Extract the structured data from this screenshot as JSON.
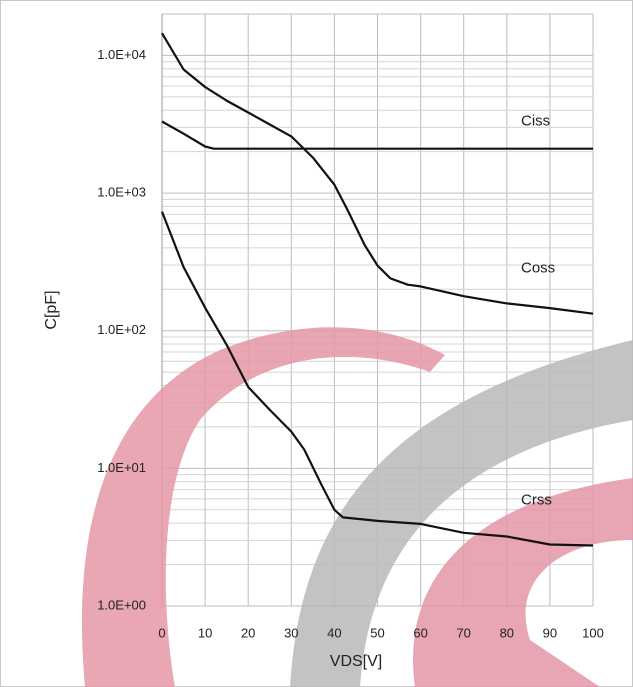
{
  "chart_data": {
    "type": "line",
    "xlabel": "VDS[V]",
    "ylabel": "C[pF]",
    "log_y": true,
    "grid": true,
    "xlim": [
      0,
      100
    ],
    "xticks": [
      0,
      10,
      20,
      30,
      40,
      50,
      60,
      70,
      80,
      90,
      100
    ],
    "ylim": [
      1,
      20000
    ],
    "yticks": [
      {
        "value": 10000,
        "label": "1.0E+04"
      },
      {
        "value": 1000,
        "label": "1.0E+03"
      },
      {
        "value": 100,
        "label": "1.0E+02"
      },
      {
        "value": 10,
        "label": "1.0E+01"
      },
      {
        "value": 1,
        "label": "1.0E+00"
      }
    ],
    "series": [
      {
        "name": "Ciss",
        "color": "#111111",
        "x": [
          0,
          5,
          10,
          12,
          20,
          40,
          60,
          80,
          100
        ],
        "values": [
          3310,
          2700,
          2180,
          2100,
          2100,
          2100,
          2100,
          2100,
          2100
        ]
      },
      {
        "name": "Coss",
        "color": "#111111",
        "x": [
          0,
          5,
          10,
          15,
          20,
          25,
          30,
          35,
          40,
          43,
          47,
          50,
          53,
          57,
          60,
          70,
          80,
          90,
          100
        ],
        "values": [
          14500,
          7900,
          5900,
          4700,
          3850,
          3150,
          2580,
          1810,
          1150,
          760,
          420,
          297,
          240,
          216,
          210,
          178,
          158,
          146,
          133
        ]
      },
      {
        "name": "Crss",
        "color": "#111111",
        "x": [
          0,
          5,
          10,
          15,
          20,
          25,
          30,
          33,
          37,
          40,
          42,
          50,
          60,
          70,
          80,
          90,
          100
        ],
        "values": [
          733,
          290,
          147,
          79,
          39,
          26.6,
          18.5,
          13.7,
          7.6,
          5.0,
          4.4,
          4.15,
          3.95,
          3.4,
          3.2,
          2.8,
          2.75
        ]
      }
    ]
  }
}
